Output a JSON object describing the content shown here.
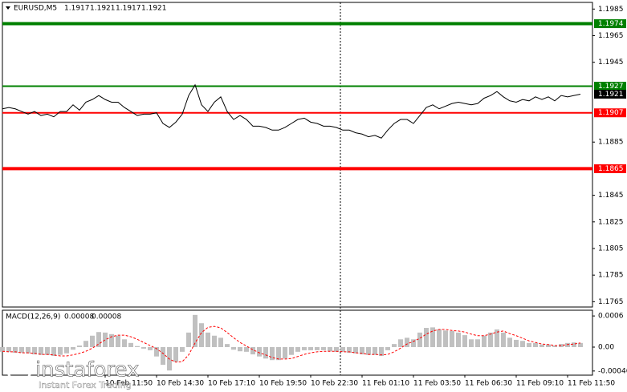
{
  "chart_data": [
    {
      "type": "line",
      "title": "EURUSD,M5",
      "ohlc": [
        1.1917,
        1.1921,
        1.1917,
        1.1921
      ],
      "categories": [
        null,
        null,
        null,
        null,
        null,
        null,
        null,
        null,
        null,
        null,
        null,
        null,
        null,
        null,
        null,
        null,
        "10 Feb 11:50",
        null,
        null,
        null,
        null,
        null,
        null,
        null,
        "10 Feb 14:30",
        null,
        null,
        null,
        null,
        null,
        null,
        null,
        "10 Feb 17:10",
        null,
        null,
        null,
        null,
        null,
        null,
        null,
        "10 Feb 19:50",
        null,
        null,
        null,
        null,
        null,
        null,
        null,
        "10 Feb 22:30",
        null,
        null,
        null,
        null,
        null,
        null,
        null,
        "11 Feb 01:10",
        null,
        null,
        null,
        null,
        null,
        null,
        null,
        "11 Feb 03:50",
        null,
        null,
        null,
        null,
        null,
        null,
        null,
        "11 Feb 06:30",
        null,
        null,
        null,
        null,
        null,
        null,
        null,
        "11 Feb 09:10",
        null,
        null,
        null,
        null,
        null,
        null,
        null,
        "11 Feb 11:50",
        null,
        null
      ],
      "series": [
        {
          "color": "#000000",
          "values": [
            1.191,
            1.1911,
            1.191,
            1.1908,
            1.1906,
            1.1908,
            1.1905,
            1.1906,
            1.1904,
            1.1908,
            1.1908,
            1.1913,
            1.1909,
            1.1915,
            1.1917,
            1.192,
            1.1917,
            1.1915,
            1.1915,
            1.1911,
            1.1908,
            1.1905,
            1.1906,
            1.1906,
            1.1907,
            1.1899,
            1.1896,
            1.19,
            1.1906,
            1.192,
            1.1928,
            1.1913,
            1.1908,
            1.1915,
            1.1919,
            1.1908,
            1.1902,
            1.1905,
            1.1902,
            1.1897,
            1.1897,
            1.1896,
            1.1894,
            1.1894,
            1.1896,
            1.1899,
            1.1902,
            1.1903,
            1.19,
            1.1899,
            1.1897,
            1.1897,
            1.1896,
            1.1894,
            1.1894,
            1.1892,
            1.1891,
            1.1889,
            1.189,
            1.1888,
            1.1894,
            1.1899,
            1.1902,
            1.1902,
            1.1899,
            1.1905,
            1.1911,
            1.1913,
            1.191,
            1.1912,
            1.1914,
            1.1915,
            1.1914,
            1.1913,
            1.1914,
            1.1918,
            1.192,
            1.1923,
            1.1919,
            1.1916,
            1.1915,
            1.1917,
            1.1916,
            1.1919,
            1.1917,
            1.1919,
            1.1916,
            1.192,
            1.1919,
            1.192,
            1.1921
          ]
        }
      ],
      "levels": [
        {
          "value": 1.1974,
          "color": "#008000",
          "width": 4
        },
        {
          "value": 1.1927,
          "color": "#008000",
          "width": 2
        },
        {
          "value": 1.1907,
          "color": "#ff0000",
          "width": 2
        },
        {
          "value": 1.1865,
          "color": "#ff0000",
          "width": 4
        }
      ],
      "ylim": [
        1.1761,
        1.199
      ],
      "yticks": [
        1.1985,
        1.1965,
        1.1945,
        1.1885,
        1.1845,
        1.1825,
        1.1805,
        1.1785,
        1.1765
      ]
    },
    {
      "type": "bar",
      "title": "MACD(12,26,9)",
      "series": [
        {
          "color": "#c0c0c0",
          "values": [
            -9e-05,
            -9e-05,
            -0.00011,
            -0.00011,
            -0.00012,
            -0.00014,
            -0.00015,
            -0.00015,
            -0.00017,
            -0.00015,
            -0.00012,
            -5e-05,
            3e-05,
            0.00012,
            0.00022,
            0.00029,
            0.00028,
            0.00025,
            0.00022,
            0.00015,
            8e-05,
            2e-05,
            -3e-05,
            -6e-05,
            -0.00018,
            -0.00034,
            -0.00045,
            -0.00028,
            -9e-05,
            0.00028,
            0.00062,
            0.00046,
            0.00028,
            0.00022,
            0.00018,
            6e-05,
            -5e-05,
            -8e-05,
            -9e-05,
            -0.00014,
            -0.00018,
            -0.00022,
            -0.00025,
            -0.00025,
            -0.00022,
            -0.00015,
            -9e-05,
            -6e-05,
            -6e-05,
            -6e-05,
            -6e-05,
            -8e-05,
            -9e-05,
            -9e-05,
            -0.00011,
            -0.00012,
            -0.00014,
            -0.00015,
            -0.00015,
            -0.00017,
            -6e-05,
            6e-05,
            0.00015,
            0.00018,
            0.00015,
            0.00028,
            0.00037,
            0.00038,
            0.00034,
            0.00032,
            0.00031,
            0.00028,
            0.00023,
            0.00015,
            0.00015,
            0.00022,
            0.00028,
            0.00034,
            0.00028,
            0.00018,
            0.00014,
            0.00012,
            8e-05,
            8e-05,
            5e-05,
            5e-05,
            3e-05,
            6e-05,
            8e-05,
            9e-05,
            8e-05
          ]
        },
        {
          "color": "#ff0000",
          "style": "dashed",
          "values": [
            -8e-05,
            -9e-05,
            -9e-05,
            -0.00011,
            -0.00011,
            -0.00012,
            -0.00014,
            -0.00014,
            -0.00015,
            -0.00017,
            -0.00017,
            -0.00015,
            -0.00012,
            -8e-05,
            -2e-05,
            6e-05,
            0.00014,
            0.0002,
            0.00023,
            0.00023,
            0.0002,
            0.00015,
            9e-05,
            3e-05,
            -3e-05,
            -0.00012,
            -0.00023,
            -0.00029,
            -0.00028,
            -0.00015,
            8e-05,
            0.00028,
            0.00038,
            0.0004,
            0.00037,
            0.00028,
            0.00018,
            9e-05,
            2e-05,
            -5e-05,
            -0.00011,
            -0.00015,
            -0.0002,
            -0.00023,
            -0.00023,
            -0.00022,
            -0.00018,
            -0.00014,
            -0.00011,
            -9e-05,
            -8e-05,
            -8e-05,
            -8e-05,
            -9e-05,
            -9e-05,
            -0.00011,
            -0.00012,
            -0.00014,
            -0.00014,
            -0.00015,
            -0.00014,
            -9e-05,
            -2e-05,
            6e-05,
            0.00011,
            0.00017,
            0.00025,
            0.00031,
            0.00034,
            0.00034,
            0.00032,
            0.00031,
            0.00029,
            0.00025,
            0.00022,
            0.00022,
            0.00025,
            0.00029,
            0.00031,
            0.00026,
            0.00022,
            0.00017,
            0.00012,
            9e-05,
            6e-05,
            5e-05,
            3e-05,
            3e-05,
            5e-05,
            6e-05,
            8e-05
          ]
        }
      ],
      "ylim": [
        -0.00054,
        0.00071
      ],
      "yticks": [
        0.0006,
        {
          "value": 0,
          "label": "0.00"
        },
        -0.00046
      ]
    }
  ],
  "watermark": {
    "brand": "instaforex",
    "tagline": "Instant Forex Trading"
  }
}
